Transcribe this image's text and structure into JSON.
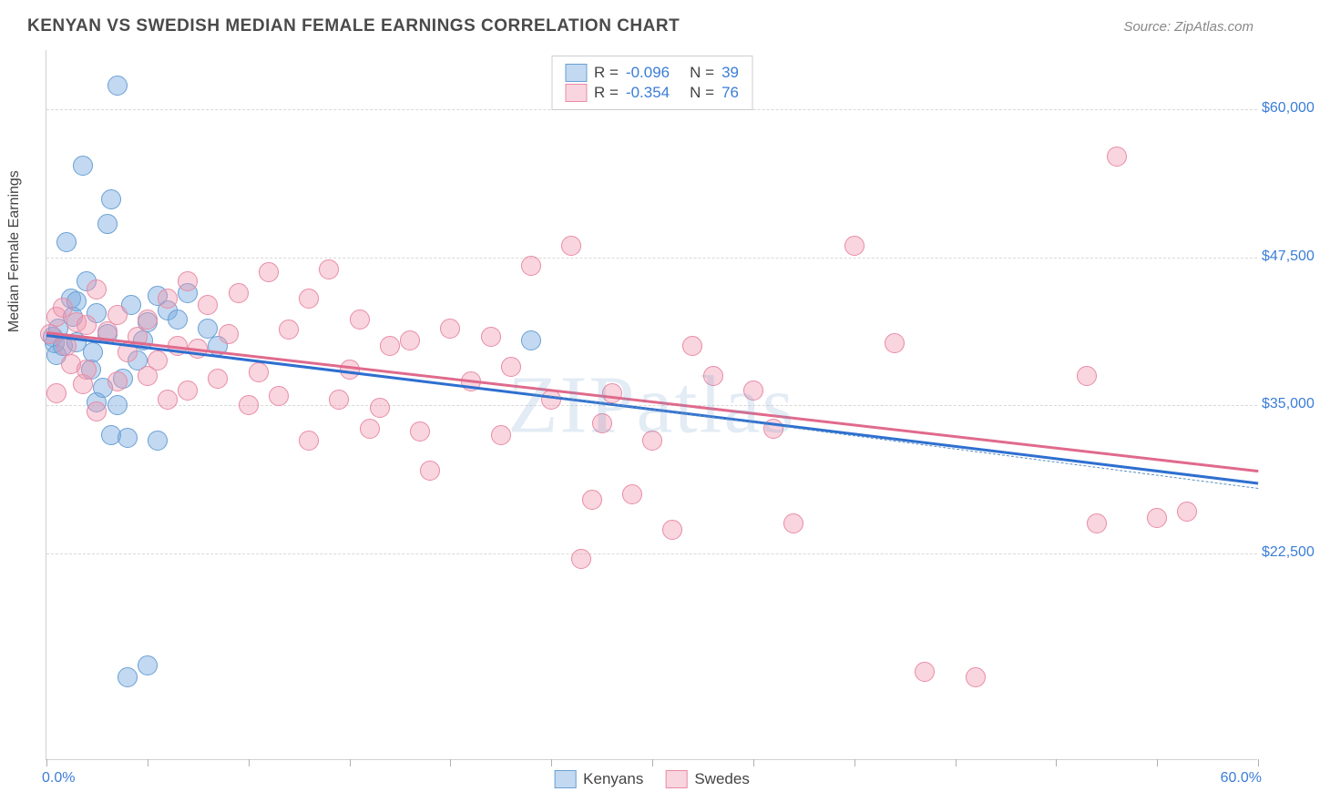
{
  "title": "KENYAN VS SWEDISH MEDIAN FEMALE EARNINGS CORRELATION CHART",
  "source": "Source: ZipAtlas.com",
  "watermark": "ZIPatlas",
  "chart": {
    "type": "scatter",
    "y_axis_title": "Median Female Earnings",
    "xlim": [
      0,
      60
    ],
    "ylim": [
      5000,
      65000
    ],
    "x_tick_start": "0.0%",
    "x_tick_end": "60.0%",
    "x_tick_positions": [
      0,
      5,
      10,
      15,
      20,
      25,
      30,
      35,
      40,
      45,
      50,
      55,
      60
    ],
    "y_ticks": [
      {
        "value": 22500,
        "label": "$22,500"
      },
      {
        "value": 35000,
        "label": "$35,000"
      },
      {
        "value": 47500,
        "label": "$47,500"
      },
      {
        "value": 60000,
        "label": "$60,000"
      }
    ],
    "background_color": "#ffffff",
    "grid_color": "#d8d8d8",
    "axis_color": "#d0d0d0",
    "label_fontsize": 16,
    "title_fontsize": 19
  },
  "series": [
    {
      "name": "Kenyans",
      "fill_color": "rgba(120,170,225,0.45)",
      "stroke_color": "#6a9fd4",
      "reg_line_color": "#2e6fd0",
      "reg_line_width": 3,
      "reg_dash_color": "#5a8fc0",
      "marker_radius": 11,
      "R": "-0.096",
      "N": "39",
      "regression": {
        "x1": 0,
        "y1": 41000,
        "x2": 60,
        "y2": 28500
      },
      "regression_dash": {
        "x1": 24,
        "y1": 36000,
        "x2": 60,
        "y2": 28000
      },
      "data": [
        [
          0.3,
          40800
        ],
        [
          0.4,
          40200
        ],
        [
          0.5,
          39200
        ],
        [
          0.6,
          41500
        ],
        [
          0.8,
          40000
        ],
        [
          1.0,
          48800
        ],
        [
          1.2,
          44000
        ],
        [
          1.3,
          42500
        ],
        [
          1.5,
          43800
        ],
        [
          1.5,
          40300
        ],
        [
          1.8,
          55200
        ],
        [
          2.0,
          45500
        ],
        [
          2.2,
          38000
        ],
        [
          2.3,
          39500
        ],
        [
          2.5,
          42800
        ],
        [
          2.5,
          35200
        ],
        [
          2.8,
          36500
        ],
        [
          3.0,
          50300
        ],
        [
          3.0,
          41000
        ],
        [
          3.2,
          52400
        ],
        [
          3.2,
          32500
        ],
        [
          3.5,
          62000
        ],
        [
          3.5,
          35000
        ],
        [
          3.8,
          37200
        ],
        [
          4.0,
          32200
        ],
        [
          4.0,
          12000
        ],
        [
          4.2,
          43500
        ],
        [
          4.5,
          38800
        ],
        [
          4.8,
          40500
        ],
        [
          5.0,
          42000
        ],
        [
          5.0,
          13000
        ],
        [
          5.5,
          44200
        ],
        [
          5.5,
          32000
        ],
        [
          6.0,
          43000
        ],
        [
          6.5,
          42200
        ],
        [
          7.0,
          44500
        ],
        [
          8.0,
          41500
        ],
        [
          8.5,
          40000
        ],
        [
          24.0,
          40500
        ]
      ]
    },
    {
      "name": "Swedes",
      "fill_color": "rgba(240,150,175,0.40)",
      "stroke_color": "#e88ba5",
      "reg_line_color": "#e06a8c",
      "reg_line_width": 3,
      "marker_radius": 11,
      "R": "-0.354",
      "N": "76",
      "regression": {
        "x1": 0,
        "y1": 41200,
        "x2": 60,
        "y2": 29500
      },
      "data": [
        [
          0.2,
          41000
        ],
        [
          0.5,
          42500
        ],
        [
          0.5,
          36000
        ],
        [
          0.8,
          43200
        ],
        [
          1.0,
          40000
        ],
        [
          1.2,
          38500
        ],
        [
          1.5,
          42000
        ],
        [
          1.8,
          36800
        ],
        [
          2.0,
          41800
        ],
        [
          2.0,
          38000
        ],
        [
          2.5,
          44800
        ],
        [
          2.5,
          34500
        ],
        [
          3.0,
          41200
        ],
        [
          3.5,
          42600
        ],
        [
          3.5,
          37000
        ],
        [
          4.0,
          39500
        ],
        [
          4.5,
          40800
        ],
        [
          5.0,
          42200
        ],
        [
          5.0,
          37500
        ],
        [
          5.5,
          38800
        ],
        [
          6.0,
          44000
        ],
        [
          6.0,
          35500
        ],
        [
          6.5,
          40000
        ],
        [
          7.0,
          45500
        ],
        [
          7.0,
          36200
        ],
        [
          7.5,
          39800
        ],
        [
          8.0,
          43500
        ],
        [
          8.5,
          37200
        ],
        [
          9.0,
          41000
        ],
        [
          9.5,
          44500
        ],
        [
          10.0,
          35000
        ],
        [
          10.5,
          37800
        ],
        [
          11.0,
          46200
        ],
        [
          11.5,
          35800
        ],
        [
          12.0,
          41400
        ],
        [
          13.0,
          44000
        ],
        [
          13.0,
          32000
        ],
        [
          14.0,
          46500
        ],
        [
          14.5,
          35500
        ],
        [
          15.0,
          38000
        ],
        [
          15.5,
          42200
        ],
        [
          16.0,
          33000
        ],
        [
          16.5,
          34800
        ],
        [
          17.0,
          40000
        ],
        [
          18.0,
          40500
        ],
        [
          18.5,
          32800
        ],
        [
          19.0,
          29500
        ],
        [
          20.0,
          41500
        ],
        [
          21.0,
          37000
        ],
        [
          22.0,
          40800
        ],
        [
          22.5,
          32500
        ],
        [
          23.0,
          38200
        ],
        [
          24.0,
          46800
        ],
        [
          25.0,
          35500
        ],
        [
          26.0,
          48500
        ],
        [
          26.5,
          22000
        ],
        [
          27.0,
          27000
        ],
        [
          27.5,
          33500
        ],
        [
          28.0,
          36000
        ],
        [
          29.0,
          27500
        ],
        [
          30.0,
          32000
        ],
        [
          31.0,
          24500
        ],
        [
          32.0,
          40000
        ],
        [
          33.0,
          37500
        ],
        [
          35.0,
          36200
        ],
        [
          36.0,
          33000
        ],
        [
          37.0,
          25000
        ],
        [
          40.0,
          48500
        ],
        [
          42.0,
          40200
        ],
        [
          43.5,
          12500
        ],
        [
          46.0,
          12000
        ],
        [
          51.5,
          37500
        ],
        [
          52.0,
          25000
        ],
        [
          53.0,
          56000
        ],
        [
          55.0,
          25500
        ],
        [
          56.5,
          26000
        ]
      ]
    }
  ],
  "legend_bottom": [
    "Kenyans",
    "Swedes"
  ]
}
